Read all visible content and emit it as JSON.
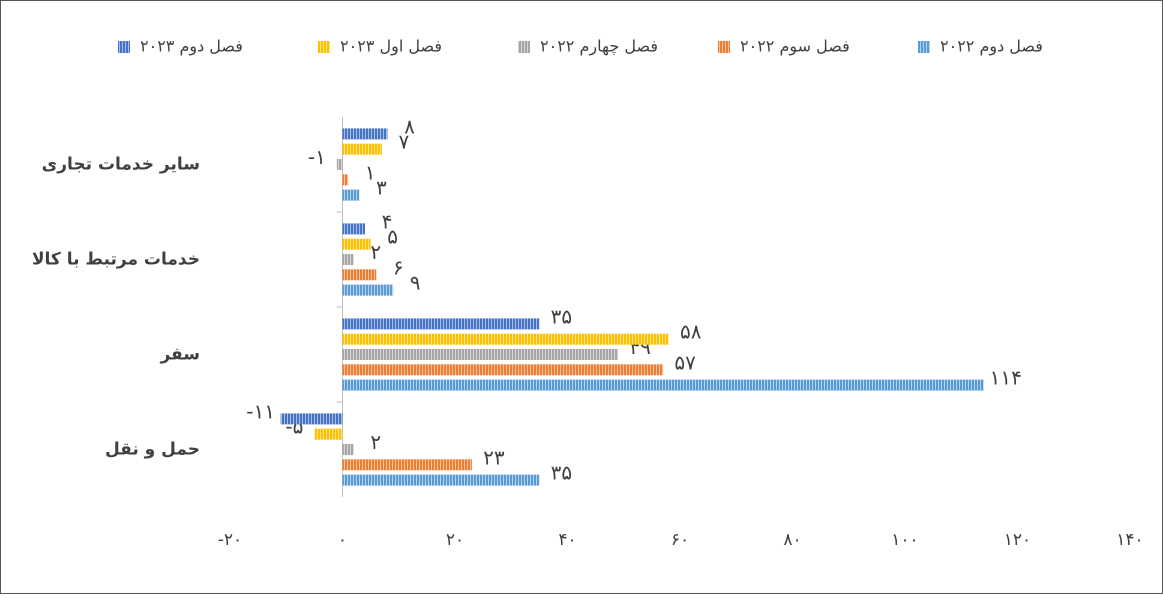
{
  "chart_data": {
    "type": "hbar",
    "categories": [
      "سایر خدمات تجاری",
      "خدمات مرتبط با کالا",
      "سفر",
      "حمل و نقل"
    ],
    "series": [
      {
        "name": "فصل دوم ۲۰۲۲",
        "color": "#5b9bd5",
        "values": [
          3,
          9,
          114,
          35
        ],
        "value_labels": [
          "۳",
          "۹",
          "۱۱۴",
          "۳۵"
        ]
      },
      {
        "name": "فصل سوم ۲۰۲۲",
        "color": "#ed7d31",
        "values": [
          1,
          6,
          57,
          23
        ],
        "value_labels": [
          "۱",
          "۶",
          "۵۷",
          "۲۳"
        ]
      },
      {
        "name": "فصل چهارم ۲۰۲۲",
        "color": "#a5a5a5",
        "values": [
          -1,
          2,
          49,
          2
        ],
        "value_labels": [
          "-۱",
          "۲",
          "۴۹",
          "۲"
        ]
      },
      {
        "name": "فصل اول ۲۰۲۳",
        "color": "#ffc000",
        "values": [
          7,
          5,
          58,
          -5
        ],
        "value_labels": [
          "۷",
          "۵",
          "۵۸",
          "-۵"
        ]
      },
      {
        "name": "فصل دوم ۲۰۲۳",
        "color": "#4472c4",
        "values": [
          8,
          4,
          35,
          -11
        ],
        "value_labels": [
          "۸",
          "۴",
          "۳۵",
          "-۱۱"
        ]
      }
    ],
    "xlim": [
      -20,
      140
    ],
    "xticks": [
      {
        "value": -20,
        "label": "-۲۰"
      },
      {
        "value": 0,
        "label": "۰"
      },
      {
        "value": 20,
        "label": "۲۰"
      },
      {
        "value": 40,
        "label": "۴۰"
      },
      {
        "value": 60,
        "label": "۶۰"
      },
      {
        "value": 80,
        "label": "۸۰"
      },
      {
        "value": 100,
        "label": "۱۰۰"
      },
      {
        "value": 120,
        "label": "۱۲۰"
      },
      {
        "value": 140,
        "label": "۱۴۰"
      }
    ],
    "legend": "top"
  }
}
